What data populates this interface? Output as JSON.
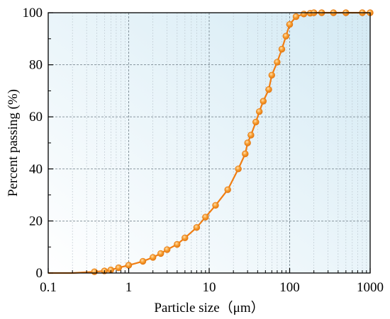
{
  "chart_data": {
    "type": "line",
    "xscale": "log",
    "xlim": [
      0.1,
      1000
    ],
    "ylim": [
      0,
      100
    ],
    "xlabel": "Particle size（μm）",
    "ylabel": "Percent passing (%)",
    "x_ticks": [
      "0.1",
      "1",
      "10",
      "100",
      "1000"
    ],
    "y_ticks": [
      "0",
      "20",
      "40",
      "60",
      "80",
      "100"
    ],
    "grid": true,
    "colors": {
      "line": "#f07d12",
      "marker": "#f7a030",
      "bg_light": "#ffffff",
      "bg_dark": "#d6ebf4"
    },
    "series": [
      {
        "x": [
          0.1,
          0.2,
          0.375,
          0.5,
          0.6,
          0.75,
          1.0,
          1.5,
          2.0,
          2.5,
          3.0,
          4.0,
          5.0,
          7.0,
          9.0,
          12.0,
          17.0,
          23.0,
          28.0,
          30.0,
          33.0,
          38.0,
          42.0,
          47.0,
          55.0,
          60.0,
          70.0,
          80.0,
          90.0,
          100.0,
          120.0,
          150.0,
          180.0,
          200.0,
          250.0,
          350.0,
          500.0,
          800.0,
          1000.0
        ],
        "y": [
          0,
          0,
          0.5,
          0.8,
          1.2,
          2.0,
          3.0,
          4.5,
          6.0,
          7.5,
          9.0,
          11.0,
          13.5,
          17.5,
          21.5,
          26.0,
          32.0,
          40.0,
          45.8,
          50.0,
          53.0,
          58.0,
          62.0,
          66.0,
          70.5,
          76.0,
          81.0,
          86.0,
          91.0,
          95.5,
          98.5,
          99.5,
          99.8,
          100,
          100,
          100,
          100,
          100,
          100
        ]
      }
    ]
  }
}
